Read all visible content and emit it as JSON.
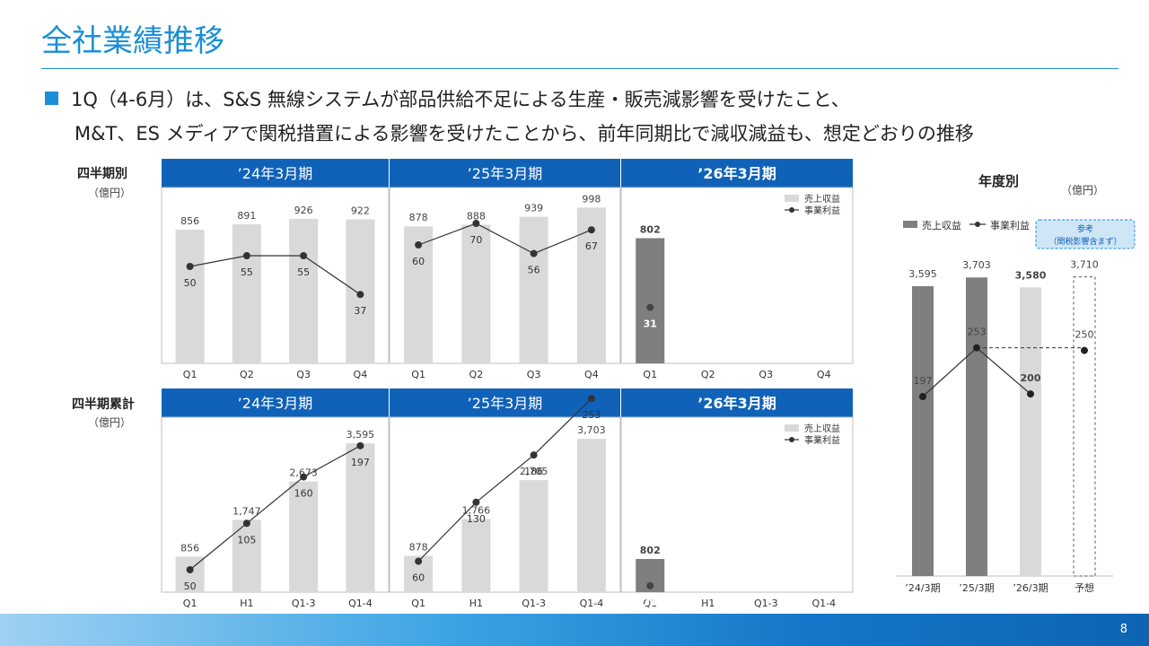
{
  "title": "全社業績推移",
  "bullet": {
    "line1": "1Q（4-6月）は、S&S 無線システムが部品供給不足による生産・販売減影響を受けたこと、",
    "line2": "M&T、ES メディアで関税措置による影響を受けたことから、前年同期比で減収減益も、想定どおりの推移"
  },
  "page_number": "8",
  "left_sections": [
    {
      "label": "四半期別",
      "unit": "（億円）"
    },
    {
      "label": "四半期累計",
      "unit": "（億円）"
    }
  ],
  "right_section": {
    "label": "年度別",
    "unit": "（億円）",
    "note": "参考\n（関税影響含まず）"
  },
  "colors": {
    "header": "#1062b8",
    "bar_light": "#d9d9d9",
    "bar_dark": "#7f7f7f",
    "line": "#333333",
    "title": "#1a8fd6"
  },
  "chart_data": [
    {
      "type": "bar",
      "title": "四半期別",
      "panels": [
        {
          "header": "’24年3月期",
          "categories": [
            "Q1",
            "Q2",
            "Q3",
            "Q4"
          ],
          "sales": [
            856,
            891,
            926,
            922
          ],
          "profit": [
            50,
            55,
            55,
            37
          ]
        },
        {
          "header": "’25年3月期",
          "categories": [
            "Q1",
            "Q2",
            "Q3",
            "Q4"
          ],
          "sales": [
            878,
            888,
            939,
            998
          ],
          "profit": [
            60,
            70,
            56,
            67
          ]
        },
        {
          "header": "’26年3月期",
          "categories": [
            "Q1",
            "Q2",
            "Q3",
            "Q4"
          ],
          "sales": [
            802
          ],
          "profit": [
            31
          ]
        }
      ],
      "legend": [
        "売上収益",
        "事業利益"
      ]
    },
    {
      "type": "bar",
      "title": "四半期累計",
      "panels": [
        {
          "header": "’24年3月期",
          "categories": [
            "Q1",
            "H1",
            "Q1-3",
            "Q1-4"
          ],
          "sales": [
            856,
            1747,
            2673,
            3595
          ],
          "profit": [
            50,
            105,
            160,
            197
          ]
        },
        {
          "header": "’25年3月期",
          "categories": [
            "Q1",
            "H1",
            "Q1-3",
            "Q1-4"
          ],
          "sales": [
            878,
            1766,
            2705,
            3703
          ],
          "profit": [
            60,
            130,
            186,
            253
          ]
        },
        {
          "header": "’26年3月期",
          "categories": [
            "Q1",
            "H1",
            "Q1-3",
            "Q1-4"
          ],
          "sales": [
            802
          ],
          "profit": [
            31
          ]
        }
      ],
      "legend": [
        "売上収益",
        "事業利益"
      ]
    },
    {
      "type": "bar",
      "title": "年度別",
      "categories": [
        "’24/3期",
        "’25/3期",
        "’26/3期",
        "予想"
      ],
      "sales": [
        3595,
        3703,
        3580,
        3710
      ],
      "profit": [
        197,
        253,
        200,
        250
      ],
      "legend": [
        "売上収益",
        "事業利益"
      ]
    }
  ]
}
